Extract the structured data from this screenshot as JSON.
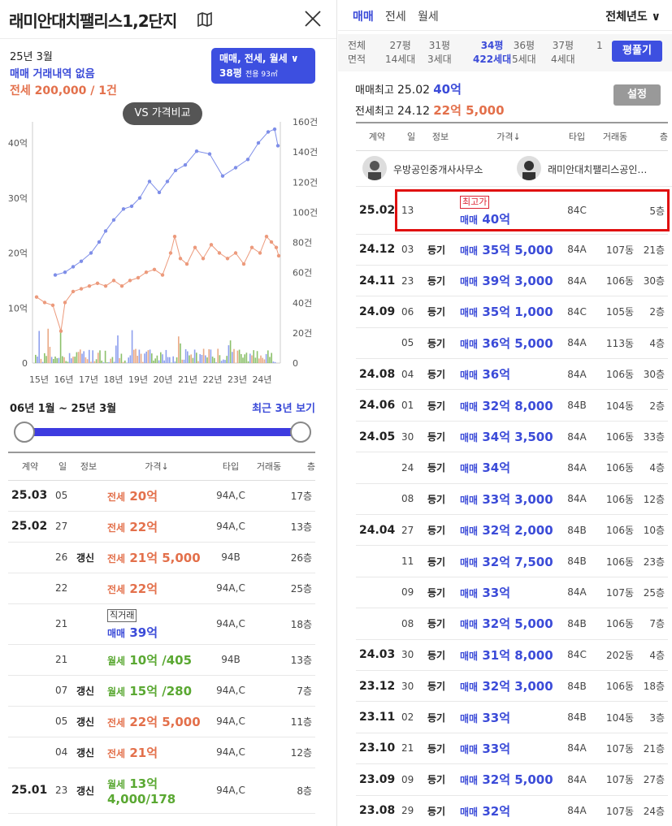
{
  "title": "래미안대치팰리스1,2단지",
  "summary": {
    "date": "25년 3월",
    "no_trade": "매매 거래내역 없음",
    "rent": "전세 200,000 / 1건"
  },
  "dropdown": {
    "line1": "매매, 전세, 월세",
    "line2": "38평",
    "line3": "전용 93㎡"
  },
  "vs_label": "VS 가격비교",
  "chart_data": {
    "type": "line",
    "left_axis": [
      "0",
      "10억",
      "20억",
      "30억",
      "40억"
    ],
    "right_axis": [
      "0",
      "20건",
      "40건",
      "60건",
      "80건",
      "100건",
      "120건",
      "140건",
      "160건"
    ],
    "x_labels": [
      "15년",
      "16년",
      "17년",
      "18년",
      "19년",
      "20년",
      "21년",
      "22년",
      "23년",
      "24년"
    ],
    "colors": {
      "sale": "#7e8ee8",
      "jeonse": "#ec9a7c",
      "vol_green": "#8cc06a",
      "vol_blue": "#8ea0ee",
      "vol_orange": "#eaaa86"
    }
  },
  "range_label": "06년 1월 ~ 25년 3월",
  "recent_label": "최근 3년 보기",
  "left_table": {
    "headers": [
      "계약",
      "일",
      "정보",
      "가격↓",
      "타입",
      "거래동",
      "층"
    ],
    "rows": [
      {
        "ym": "25.03",
        "d": "05",
        "info": "",
        "kind": "전세",
        "price": "20억",
        "ptype": "org",
        "type": "94A,C",
        "dong": "",
        "fl": "17층"
      },
      {
        "ym": "25.02",
        "d": "27",
        "info": "",
        "kind": "전세",
        "price": "22억",
        "ptype": "org",
        "type": "94A,C",
        "dong": "",
        "fl": "13층"
      },
      {
        "ym": "",
        "d": "26",
        "info": "갱신",
        "kind": "전세",
        "price": "21억 5,000",
        "ptype": "org",
        "type": "94B",
        "dong": "",
        "fl": "26층"
      },
      {
        "ym": "",
        "d": "22",
        "info": "",
        "kind": "전세",
        "price": "22억",
        "ptype": "org",
        "type": "94A,C",
        "dong": "",
        "fl": "25층"
      },
      {
        "ym": "",
        "d": "21",
        "info": "",
        "tag": "직거래",
        "kind": "매매",
        "price": "39억",
        "ptype": "blue",
        "type": "94A,C",
        "dong": "",
        "fl": "18층"
      },
      {
        "ym": "",
        "d": "21",
        "info": "",
        "kind": "월세",
        "price": "10억 /405",
        "ptype": "grn",
        "type": "94B",
        "dong": "",
        "fl": "13층"
      },
      {
        "ym": "",
        "d": "07",
        "info": "갱신",
        "kind": "월세",
        "price": "15억 /280",
        "ptype": "grn",
        "type": "94A,C",
        "dong": "",
        "fl": "7층"
      },
      {
        "ym": "",
        "d": "05",
        "info": "갱신",
        "kind": "전세",
        "price": "22억 5,000",
        "ptype": "org",
        "type": "94A,C",
        "dong": "",
        "fl": "11층"
      },
      {
        "ym": "",
        "d": "04",
        "info": "갱신",
        "kind": "전세",
        "price": "21억",
        "ptype": "org",
        "type": "94A,C",
        "dong": "",
        "fl": "12층"
      },
      {
        "ym": "25.01",
        "d": "23",
        "info": "갱신",
        "kind": "월세",
        "price": "13억",
        "price2": "4,000/178",
        "ptype": "grn",
        "type": "94A,C",
        "dong": "",
        "fl": "8층"
      }
    ]
  },
  "tabs": [
    "매매",
    "전세",
    "월세"
  ],
  "year_select": "전체년도",
  "pyeong": [
    {
      "top": "전체",
      "bot": "면적"
    },
    {
      "top": "27평",
      "bot": "14세대"
    },
    {
      "top": "31평",
      "bot": "3세대"
    },
    {
      "top": "34평",
      "bot": "422세대"
    },
    {
      "top": "36평",
      "bot": "5세대"
    },
    {
      "top": "37평",
      "bot": "4세대"
    },
    {
      "top": "",
      "bot": "1"
    }
  ],
  "pyeong_btn": "평풀기",
  "max": {
    "sale_label": "매매최고",
    "sale_date": "25.02",
    "sale_price": "40억",
    "rent_label": "전세최고",
    "rent_date": "24.12",
    "rent_price": "22억 5,000"
  },
  "settings_btn": "설정",
  "brokers": [
    "우방공인중개사사무소",
    "래미안대치팰리스공인…"
  ],
  "right_table": {
    "headers": [
      "계약",
      "일",
      "정보",
      "가격↓",
      "타입",
      "거래동",
      "층"
    ],
    "rows": [
      {
        "ym": "25.02",
        "d": "13",
        "info": "",
        "tag": "최고가",
        "price": "40억",
        "type": "84C",
        "dong": "",
        "fl": "5층"
      },
      {
        "ym": "24.12",
        "d": "03",
        "info": "등기",
        "price": "35억 5,000",
        "type": "84A",
        "dong": "107동",
        "fl": "21층"
      },
      {
        "ym": "24.11",
        "d": "23",
        "info": "등기",
        "price": "39억 3,000",
        "type": "84A",
        "dong": "106동",
        "fl": "30층"
      },
      {
        "ym": "24.09",
        "d": "06",
        "info": "등기",
        "price": "35억 1,000",
        "type": "84C",
        "dong": "105동",
        "fl": "2층"
      },
      {
        "ym": "",
        "d": "05",
        "info": "등기",
        "price": "36억 5,000",
        "type": "84A",
        "dong": "113동",
        "fl": "4층"
      },
      {
        "ym": "24.08",
        "d": "04",
        "info": "등기",
        "price": "36억",
        "type": "84A",
        "dong": "106동",
        "fl": "30층"
      },
      {
        "ym": "24.06",
        "d": "01",
        "info": "등기",
        "price": "32억 8,000",
        "type": "84B",
        "dong": "104동",
        "fl": "2층"
      },
      {
        "ym": "24.05",
        "d": "30",
        "info": "등기",
        "price": "34억 3,500",
        "type": "84A",
        "dong": "106동",
        "fl": "33층"
      },
      {
        "ym": "",
        "d": "24",
        "info": "등기",
        "price": "34억",
        "type": "84A",
        "dong": "106동",
        "fl": "4층"
      },
      {
        "ym": "",
        "d": "08",
        "info": "등기",
        "price": "33억 3,000",
        "type": "84A",
        "dong": "106동",
        "fl": "12층"
      },
      {
        "ym": "24.04",
        "d": "27",
        "info": "등기",
        "price": "32억 2,000",
        "type": "84B",
        "dong": "106동",
        "fl": "10층"
      },
      {
        "ym": "",
        "d": "11",
        "info": "등기",
        "price": "32억 7,500",
        "type": "84B",
        "dong": "106동",
        "fl": "23층"
      },
      {
        "ym": "",
        "d": "09",
        "info": "등기",
        "price": "33억",
        "type": "84A",
        "dong": "107동",
        "fl": "25층"
      },
      {
        "ym": "",
        "d": "08",
        "info": "등기",
        "price": "32억 5,000",
        "type": "84B",
        "dong": "106동",
        "fl": "7층"
      },
      {
        "ym": "24.03",
        "d": "30",
        "info": "등기",
        "price": "31억 8,000",
        "type": "84C",
        "dong": "202동",
        "fl": "4층"
      },
      {
        "ym": "23.12",
        "d": "30",
        "info": "등기",
        "price": "32억 3,000",
        "type": "84B",
        "dong": "106동",
        "fl": "18층"
      },
      {
        "ym": "23.11",
        "d": "02",
        "info": "등기",
        "price": "33억",
        "type": "84B",
        "dong": "104동",
        "fl": "3층"
      },
      {
        "ym": "23.10",
        "d": "21",
        "info": "등기",
        "price": "33억",
        "type": "84A",
        "dong": "107동",
        "fl": "21층"
      },
      {
        "ym": "23.09",
        "d": "09",
        "info": "등기",
        "price": "32억 5,000",
        "type": "84A",
        "dong": "107동",
        "fl": "27층"
      },
      {
        "ym": "23.08",
        "d": "29",
        "info": "등기",
        "price": "32억",
        "type": "84A",
        "dong": "107동",
        "fl": "24층"
      }
    ]
  },
  "sale_kind": "매매"
}
